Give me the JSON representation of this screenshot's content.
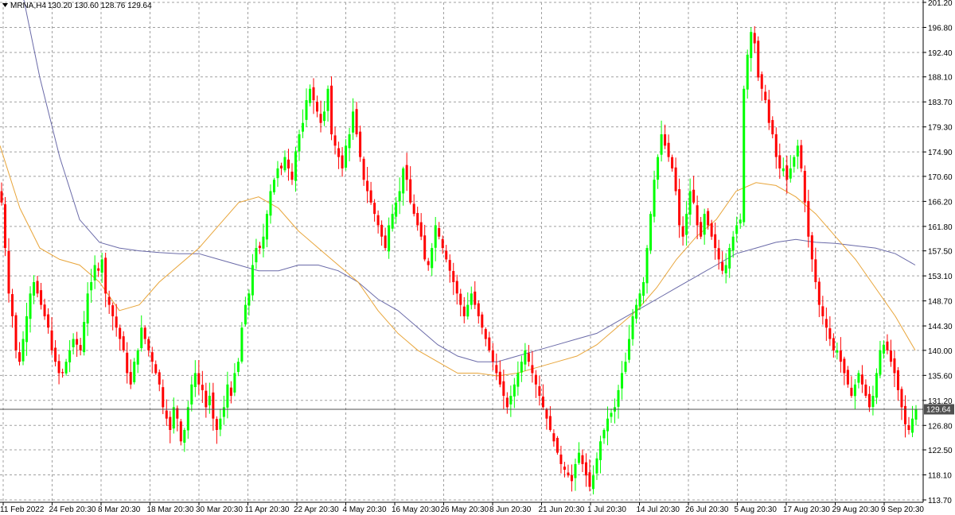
{
  "header": {
    "symbol_timeframe": "MRNA,H4",
    "ohlc_text": "130.20 130.60 128.76 129.64"
  },
  "colors": {
    "background": "#ffffff",
    "grid": "#a0a0a0",
    "bull": "#00ff00",
    "bear": "#ff0000",
    "ma_fast": "#e8a53a",
    "ma_slow": "#6a6aa8",
    "price_line": "#505050",
    "price_label_bg": "#505050",
    "price_label_text": "#ffffff"
  },
  "chart_data": {
    "type": "candlestick",
    "instrument": "MRNA",
    "timeframe": "H4",
    "grid": true,
    "ylim": [
      113.7,
      201.2
    ],
    "y_ticks": [
      "201.20",
      "196.80",
      "192.40",
      "188.10",
      "183.70",
      "179.30",
      "174.90",
      "170.60",
      "166.20",
      "161.80",
      "157.50",
      "153.10",
      "148.70",
      "144.30",
      "140.00",
      "135.60",
      "131.20",
      "126.80",
      "122.50",
      "118.10",
      "113.70"
    ],
    "x_ticks": [
      "11 Feb 2022",
      "24 Feb 20:30",
      "8 Mar 20:30",
      "18 Mar 20:30",
      "30 Mar 20:30",
      "11 Apr 20:30",
      "22 Apr 20:30",
      "4 May 20:30",
      "16 May 20:30",
      "26 May 20:30",
      "8 Jun 20:30",
      "21 Jun 20:30",
      "1 Jul 20:30",
      "14 Jul 20:30",
      "26 Jul 20:30",
      "5 Aug 20:30",
      "17 Aug 20:30",
      "29 Aug 20:30",
      "9 Sep 20:30"
    ],
    "current_price": "129.64",
    "candle_path_closes": [
      166,
      158,
      150,
      146,
      140,
      138,
      142,
      146,
      150,
      152,
      150,
      148,
      146,
      144,
      140,
      138,
      136,
      136,
      138,
      140,
      142,
      141,
      140,
      145,
      150,
      152,
      155,
      154,
      156,
      150,
      148,
      146,
      144,
      142,
      140,
      136,
      134,
      138,
      140,
      144,
      142,
      140,
      138,
      136,
      134,
      130,
      128,
      126,
      130,
      128,
      124,
      126,
      130,
      134,
      136,
      134,
      133,
      130,
      132,
      128,
      126,
      128,
      130,
      134,
      132,
      136,
      138,
      144,
      148,
      150,
      155,
      158,
      158,
      160,
      164,
      168,
      170,
      172,
      172,
      174,
      172,
      170,
      175,
      178,
      180,
      184,
      186,
      184,
      182,
      180,
      182,
      186,
      178,
      176,
      174,
      172,
      176,
      178,
      182,
      178,
      174,
      170,
      168,
      166,
      164,
      162,
      160,
      158,
      162,
      164,
      166,
      168,
      172,
      170,
      166,
      164,
      162,
      160,
      156,
      155,
      158,
      162,
      160,
      158,
      156,
      154,
      152,
      150,
      148,
      146,
      148,
      150,
      148,
      146,
      144,
      142,
      140,
      138,
      136,
      134,
      132,
      130,
      132,
      134,
      136,
      138,
      140,
      138,
      136,
      134,
      132,
      130,
      128,
      126,
      124,
      122,
      120,
      119,
      118,
      117,
      120,
      122,
      120,
      118,
      116,
      118,
      121,
      124,
      126,
      128,
      129,
      130,
      133,
      136,
      138,
      142,
      146,
      148,
      150,
      152,
      158,
      164,
      170,
      174,
      178,
      176,
      174,
      172,
      168,
      162,
      160,
      164,
      168,
      166,
      162,
      160,
      164,
      162,
      160,
      158,
      156,
      154,
      155,
      158,
      160,
      162,
      163,
      186,
      192,
      196,
      194,
      188,
      186,
      184,
      180,
      178,
      174,
      172,
      172,
      170,
      172,
      174,
      176,
      172,
      166,
      160,
      156,
      152,
      148,
      146,
      144,
      142,
      140,
      140,
      138,
      136,
      134,
      132,
      134,
      136,
      134,
      132,
      130,
      132,
      136,
      140,
      141,
      140,
      138,
      136,
      133,
      130,
      127,
      126,
      128,
      129.64
    ],
    "ma_fast_points": [
      [
        0,
        176
      ],
      [
        5,
        165
      ],
      [
        10,
        158
      ],
      [
        15,
        156
      ],
      [
        20,
        155
      ],
      [
        25,
        152
      ],
      [
        30,
        147
      ],
      [
        35,
        148
      ],
      [
        40,
        152
      ],
      [
        45,
        155
      ],
      [
        50,
        158
      ],
      [
        55,
        162
      ],
      [
        60,
        166
      ],
      [
        65,
        167
      ],
      [
        70,
        165
      ],
      [
        75,
        161
      ],
      [
        80,
        158
      ],
      [
        85,
        155
      ],
      [
        90,
        152
      ],
      [
        95,
        147
      ],
      [
        100,
        143
      ],
      [
        105,
        140
      ],
      [
        110,
        138
      ],
      [
        115,
        136
      ],
      [
        120,
        136
      ],
      [
        125,
        135.5
      ],
      [
        130,
        136
      ],
      [
        135,
        137
      ],
      [
        140,
        138
      ],
      [
        145,
        139
      ],
      [
        150,
        141
      ],
      [
        155,
        144
      ],
      [
        160,
        147
      ],
      [
        165,
        151
      ],
      [
        170,
        156
      ],
      [
        175,
        160
      ],
      [
        180,
        163
      ],
      [
        185,
        168
      ],
      [
        190,
        169.5
      ],
      [
        195,
        169
      ],
      [
        200,
        167
      ],
      [
        205,
        164
      ],
      [
        210,
        160
      ],
      [
        215,
        156
      ],
      [
        220,
        151
      ],
      [
        225,
        146
      ],
      [
        230,
        140
      ]
    ],
    "ma_slow_points": [
      [
        0,
        221
      ],
      [
        5,
        205
      ],
      [
        10,
        188
      ],
      [
        15,
        174
      ],
      [
        20,
        163
      ],
      [
        25,
        159
      ],
      [
        30,
        158
      ],
      [
        35,
        157.5
      ],
      [
        40,
        157.2
      ],
      [
        45,
        157
      ],
      [
        50,
        157
      ],
      [
        55,
        156
      ],
      [
        60,
        155
      ],
      [
        65,
        154
      ],
      [
        70,
        154
      ],
      [
        75,
        155
      ],
      [
        80,
        155
      ],
      [
        85,
        154
      ],
      [
        90,
        152
      ],
      [
        95,
        149
      ],
      [
        100,
        147
      ],
      [
        105,
        144
      ],
      [
        110,
        141
      ],
      [
        115,
        139
      ],
      [
        120,
        138
      ],
      [
        125,
        138
      ],
      [
        130,
        139
      ],
      [
        135,
        140
      ],
      [
        140,
        141
      ],
      [
        145,
        142
      ],
      [
        150,
        143
      ],
      [
        155,
        145
      ],
      [
        160,
        147
      ],
      [
        165,
        149
      ],
      [
        170,
        151
      ],
      [
        175,
        153
      ],
      [
        180,
        155
      ],
      [
        185,
        157
      ],
      [
        190,
        158
      ],
      [
        195,
        159
      ],
      [
        200,
        159.5
      ],
      [
        205,
        159
      ],
      [
        210,
        158.8
      ],
      [
        215,
        158.4
      ],
      [
        220,
        158
      ],
      [
        225,
        157
      ],
      [
        230,
        155
      ]
    ]
  }
}
